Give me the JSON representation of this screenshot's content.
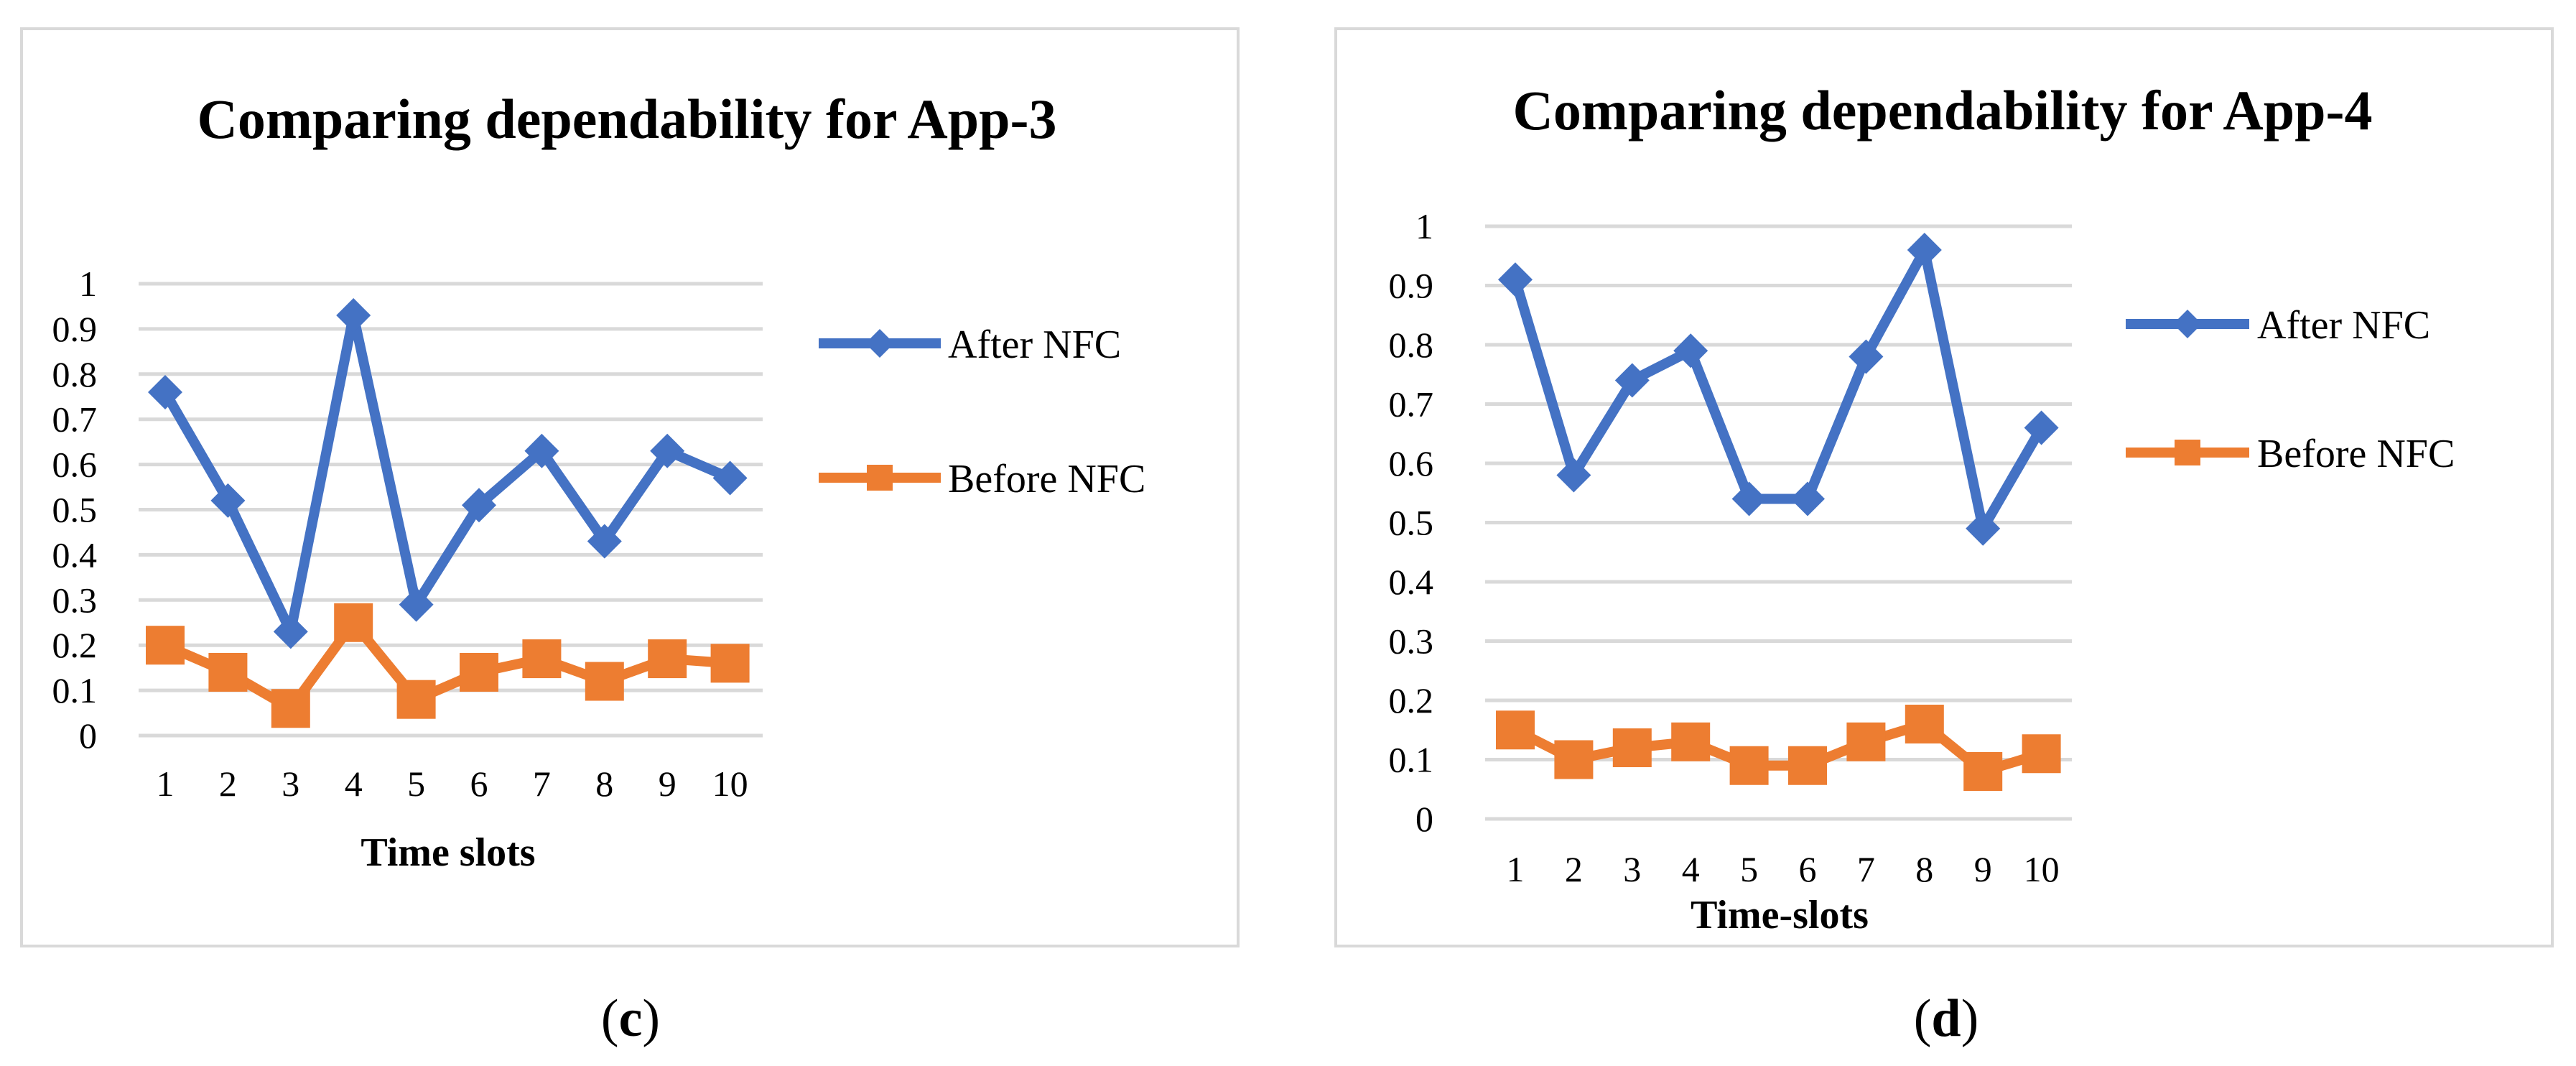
{
  "chart_data": [
    {
      "type": "line",
      "title": "Comparing dependability for App-3",
      "xlabel": "Time slots",
      "ylabel": "",
      "caption_letter": "c",
      "caption_open": "(",
      "caption_close": ")",
      "categories": [
        "1",
        "2",
        "3",
        "4",
        "5",
        "6",
        "7",
        "8",
        "9",
        "10"
      ],
      "yticks": [
        "0",
        "0.1",
        "0.2",
        "0.3",
        "0.4",
        "0.5",
        "0.6",
        "0.7",
        "0.8",
        "0.9",
        "1"
      ],
      "ylim": [
        0,
        1
      ],
      "grid": true,
      "legend_position": "right",
      "series": [
        {
          "name": "After NFC",
          "color": "#4472C4",
          "marker": "diamond",
          "values": [
            0.76,
            0.52,
            0.23,
            0.93,
            0.29,
            0.51,
            0.63,
            0.43,
            0.63,
            0.57
          ]
        },
        {
          "name": "Before NFC",
          "color": "#ED7D31",
          "marker": "square",
          "values": [
            0.2,
            0.14,
            0.06,
            0.25,
            0.08,
            0.14,
            0.17,
            0.12,
            0.17,
            0.16
          ]
        }
      ]
    },
    {
      "type": "line",
      "title": "Comparing dependability for App-4",
      "xlabel": "Time-slots",
      "ylabel": "",
      "caption_letter": "d",
      "caption_open": "(",
      "caption_close": ")",
      "categories": [
        "1",
        "2",
        "3",
        "4",
        "5",
        "6",
        "7",
        "8",
        "9",
        "10"
      ],
      "yticks": [
        "0",
        "0.1",
        "0.2",
        "0.3",
        "0.4",
        "0.5",
        "0.6",
        "0.7",
        "0.8",
        "0.9",
        "1"
      ],
      "ylim": [
        0,
        1
      ],
      "grid": true,
      "legend_position": "right",
      "series": [
        {
          "name": "After NFC",
          "color": "#4472C4",
          "marker": "diamond",
          "values": [
            0.91,
            0.58,
            0.74,
            0.79,
            0.54,
            0.54,
            0.78,
            0.96,
            0.49,
            0.66
          ]
        },
        {
          "name": "Before NFC",
          "color": "#ED7D31",
          "marker": "square",
          "values": [
            0.15,
            0.1,
            0.12,
            0.13,
            0.09,
            0.09,
            0.13,
            0.16,
            0.08,
            0.11
          ]
        }
      ]
    }
  ]
}
